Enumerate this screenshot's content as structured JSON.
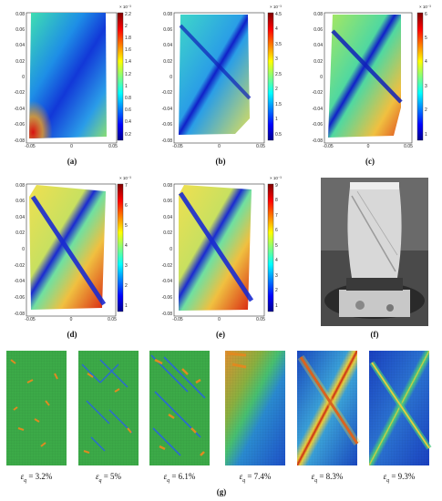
{
  "figure": {
    "panels": [
      {
        "id": "a",
        "caption": "(a)",
        "colorbar": {
          "exp": "× 10⁻³",
          "ticks": [
            "2.2",
            "2",
            "1.8",
            "1.6",
            "1.4",
            "1.2",
            "1",
            "0.8",
            "0.6",
            "0.4",
            "0.2"
          ]
        }
      },
      {
        "id": "b",
        "caption": "(b)",
        "colorbar": {
          "exp": "× 10⁻³",
          "ticks": [
            "4.5",
            "4",
            "3.5",
            "3",
            "2.5",
            "2",
            "1.5",
            "1",
            "0.5"
          ]
        }
      },
      {
        "id": "c",
        "caption": "(c)",
        "colorbar": {
          "exp": "× 10⁻³",
          "ticks": [
            "6",
            "5",
            "4",
            "3",
            "2",
            "1"
          ]
        }
      },
      {
        "id": "d",
        "caption": "(d)",
        "colorbar": {
          "exp": "× 10⁻³",
          "ticks": [
            "7",
            "6",
            "5",
            "4",
            "3",
            "2",
            "1"
          ]
        }
      },
      {
        "id": "e",
        "caption": "(e)",
        "colorbar": {
          "exp": "× 10⁻³",
          "ticks": [
            "9",
            "8",
            "7",
            "6",
            "5",
            "4",
            "3",
            "2",
            "1"
          ]
        }
      },
      {
        "id": "f",
        "caption": "(f)"
      }
    ],
    "y_ticks": [
      "0.08",
      "0.06",
      "0.04",
      "0.02",
      "0",
      "-0.02",
      "-0.04",
      "-0.06",
      "-0.08"
    ],
    "x_ticks": [
      "-0.05",
      "0",
      "0.05"
    ],
    "strain_row": {
      "caption": "(g)",
      "symbol": "ε",
      "subscript": "q",
      "labels": [
        "= 3.2%",
        "= 5%",
        "= 6.1%",
        "= 7.4%",
        "= 8.3%",
        "= 9.3%"
      ]
    },
    "colors": {
      "blue": "#1a1ad8",
      "cyan": "#21c8e8",
      "green": "#4fdc7a",
      "yellow": "#f2e84a",
      "orange": "#f08a20",
      "red": "#cc1010"
    }
  }
}
